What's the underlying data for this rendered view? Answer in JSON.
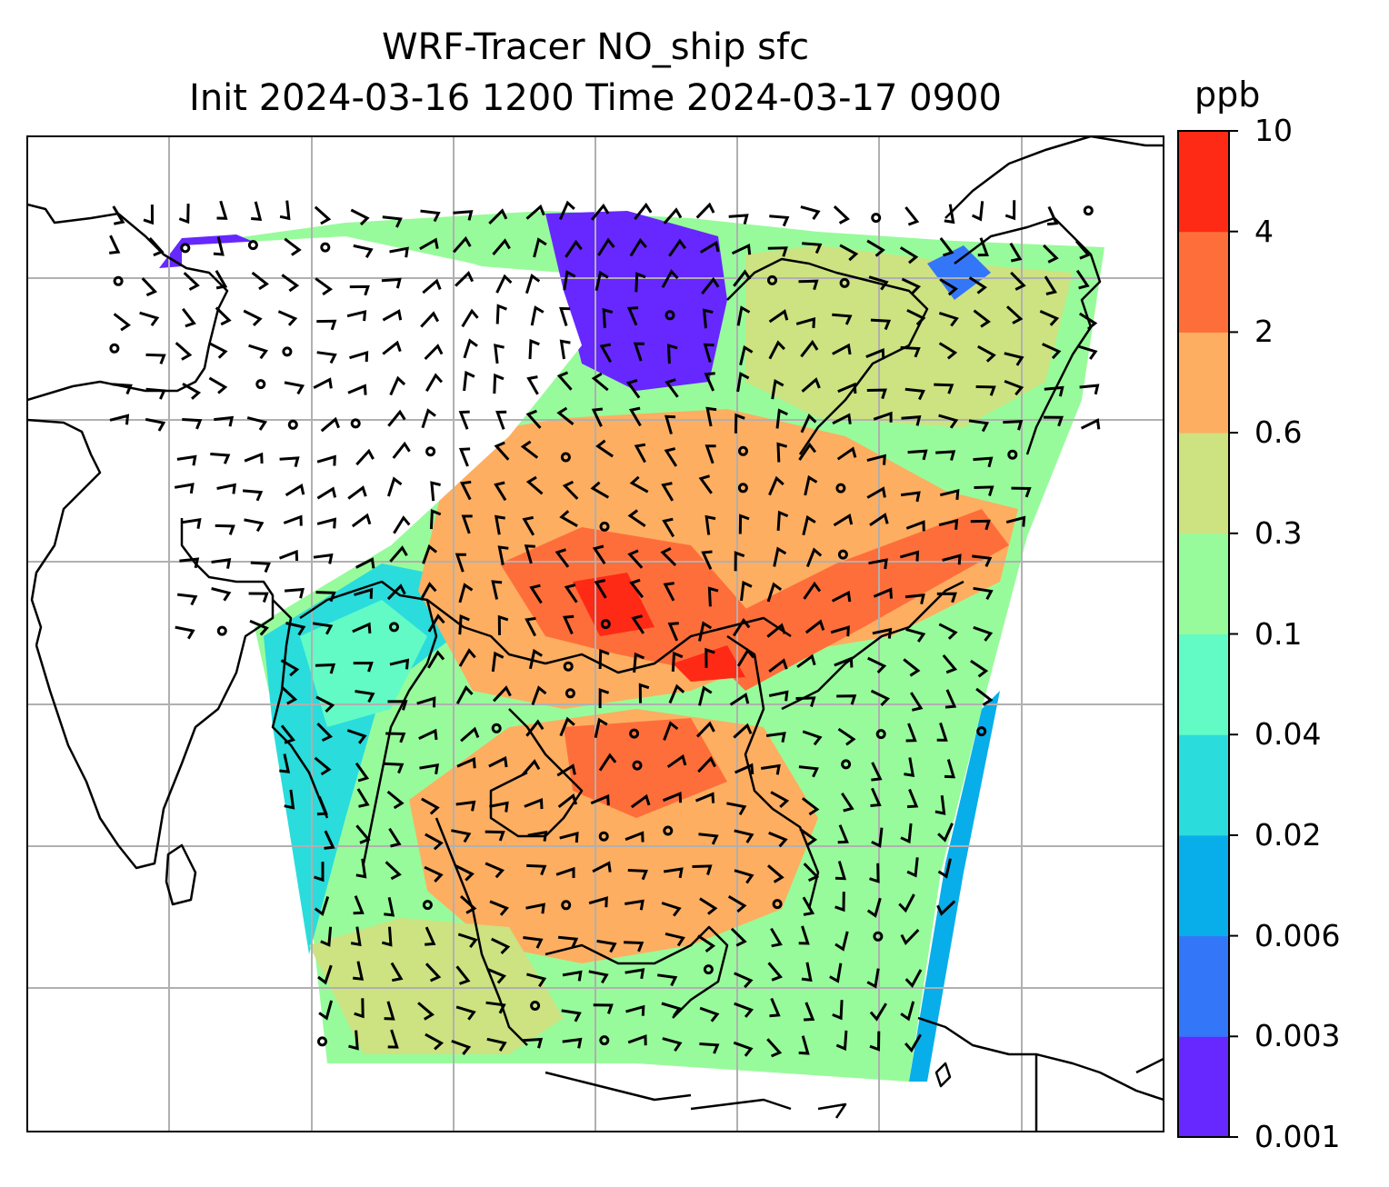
{
  "title_line1": "WRF-Tracer NO_ship sfc",
  "title_line2": "Init 2024-03-16 1200 Time 2024-03-17 0900",
  "colorbar": {
    "unit": "ppb",
    "levels": [
      "0.001",
      "0.003",
      "0.006",
      "0.02",
      "0.04",
      "0.1",
      "0.3",
      "0.6",
      "2",
      "4",
      "10"
    ],
    "colors": [
      "#6628fe",
      "#3476f8",
      "#08aeea",
      "#2adcdc",
      "#62fbc5",
      "#98fb9b",
      "#cde281",
      "#fdae61",
      "#fe6e3a",
      "#fe2a16"
    ]
  },
  "colors": {
    "coastline": "#000000",
    "gridline": "#b0b0b0",
    "wind_barb": "#000000",
    "no_data": "#ffffff"
  }
}
